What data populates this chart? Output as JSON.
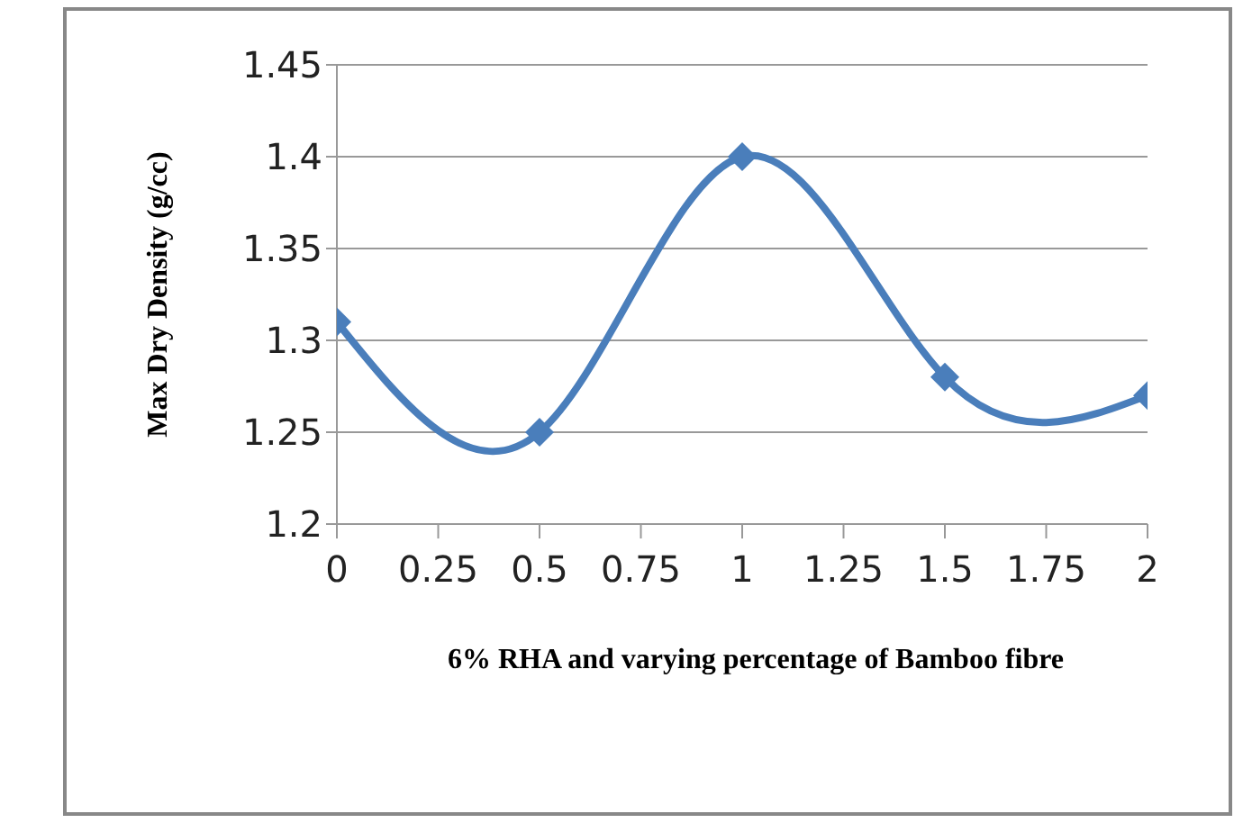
{
  "chart_data": {
    "type": "line",
    "xlabel": "6% RHA and varying percentage of  Bamboo fibre",
    "ylabel": "Max Dry Density (g/cc)",
    "x": [
      0,
      0.5,
      1,
      1.5,
      2
    ],
    "series": [
      {
        "color": "#4a7ebb",
        "values": [
          1.31,
          1.25,
          1.4,
          1.28,
          1.27
        ]
      }
    ],
    "xlim": [
      0,
      2
    ],
    "xticks": [
      0,
      0.25,
      0.5,
      0.75,
      1,
      1.25,
      1.5,
      1.75,
      2
    ],
    "ylim": [
      1.2,
      1.45
    ],
    "yticks": [
      1.2,
      1.25,
      1.3,
      1.35,
      1.4,
      1.45
    ],
    "grid": "y",
    "marker": "diamond",
    "legend": false
  }
}
